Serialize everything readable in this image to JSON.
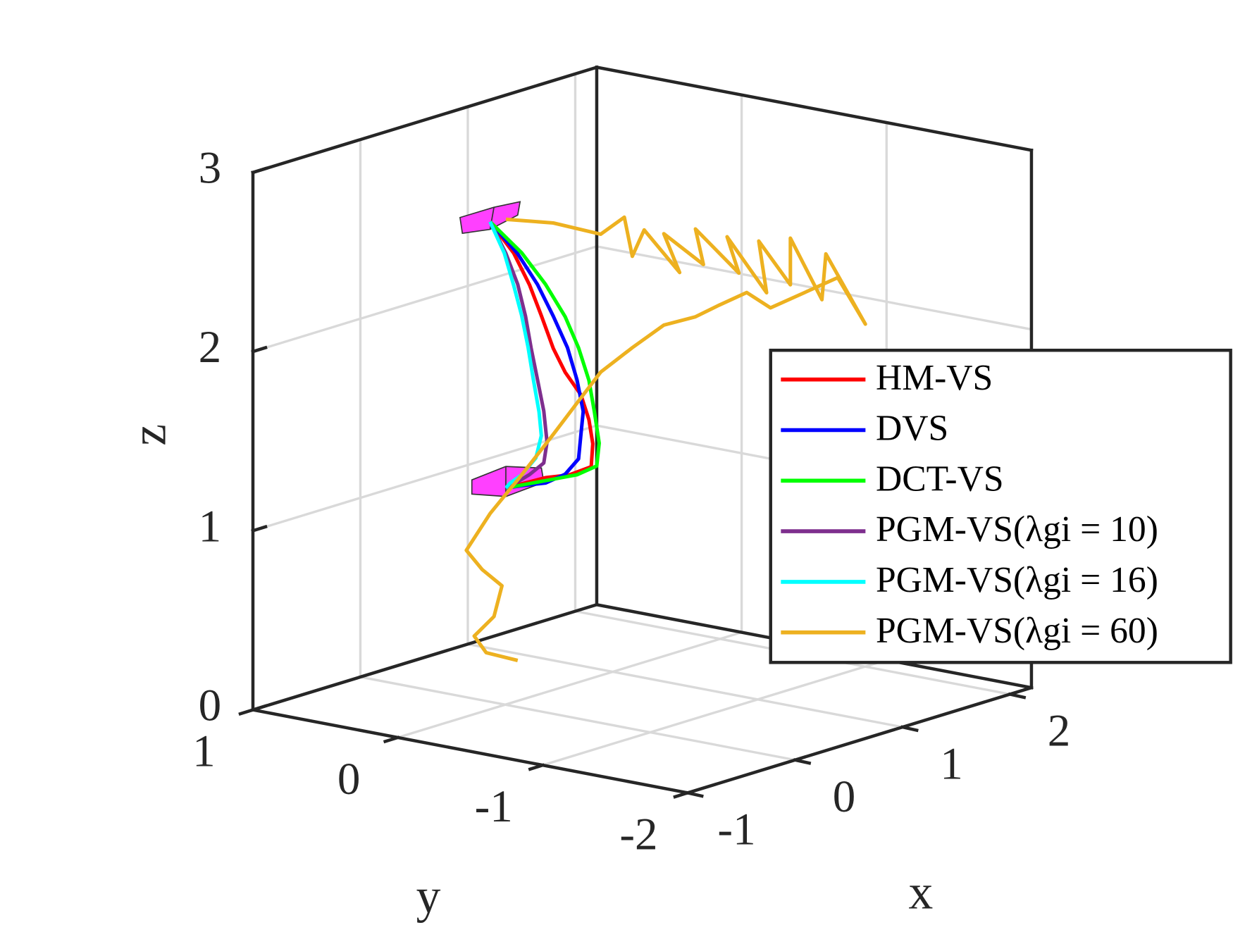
{
  "chart_data": {
    "type": "line3d",
    "xlabel": "x",
    "ylabel": "y",
    "zlabel": "z",
    "xlim": [
      -1,
      2.2
    ],
    "ylim": [
      -2,
      1
    ],
    "zlim": [
      0,
      3
    ],
    "xticks": [
      -1,
      0,
      1,
      2
    ],
    "yticks": [
      -2,
      -1,
      0,
      1
    ],
    "zticks": [
      0,
      1,
      2,
      3
    ],
    "grid": true,
    "legend": "east",
    "series": [
      {
        "name": "HM-VS",
        "color": "#ff0000",
        "x": [
          0,
          0,
          0,
          0,
          0,
          0,
          0,
          0,
          0,
          0,
          0,
          0,
          0,
          0
        ],
        "y": [
          0.105,
          -0.058,
          -0.167,
          -0.249,
          -0.331,
          -0.413,
          -0.522,
          -0.577,
          -0.604,
          -0.593,
          -0.44,
          -0.277,
          -0.113,
          -0.004
        ],
        "z": [
          2.68,
          2.53,
          2.37,
          2.21,
          2.04,
          1.92,
          1.81,
          1.68,
          1.55,
          1.42,
          1.35,
          1.31,
          1.25,
          1.21
        ]
      },
      {
        "name": "DVS",
        "color": "#0000ff",
        "x": [
          0,
          0,
          0,
          0,
          0,
          0,
          0,
          0,
          0,
          0,
          0,
          0,
          0
        ],
        "y": [
          0.105,
          -0.086,
          -0.222,
          -0.331,
          -0.429,
          -0.495,
          -0.538,
          -0.522,
          -0.506,
          -0.413,
          -0.277,
          -0.113,
          -0.004
        ],
        "z": [
          2.68,
          2.53,
          2.38,
          2.22,
          2.06,
          1.89,
          1.72,
          1.59,
          1.45,
          1.35,
          1.28,
          1.24,
          1.21
        ]
      },
      {
        "name": "DCT-VS",
        "color": "#00ff00",
        "x": [
          0,
          0,
          0,
          0,
          0,
          0,
          0,
          0,
          0,
          0,
          0,
          0,
          0
        ],
        "y": [
          0.105,
          -0.113,
          -0.277,
          -0.413,
          -0.506,
          -0.577,
          -0.615,
          -0.648,
          -0.631,
          -0.495,
          -0.331,
          -0.167,
          -0.004
        ],
        "z": [
          2.68,
          2.54,
          2.39,
          2.23,
          2.07,
          1.9,
          1.73,
          1.56,
          1.43,
          1.36,
          1.31,
          1.26,
          1.21
        ]
      },
      {
        "name": "PGM-VS(λgi = 10)",
        "color": "#7e2f8e",
        "x": [
          0,
          0,
          0,
          0,
          0,
          0,
          0,
          0,
          0,
          0,
          0,
          0
        ],
        "y": [
          0.105,
          -0.004,
          -0.086,
          -0.14,
          -0.178,
          -0.222,
          -0.266,
          -0.288,
          -0.266,
          -0.167,
          -0.058,
          -0.004
        ],
        "z": [
          2.68,
          2.52,
          2.36,
          2.19,
          2.02,
          1.85,
          1.68,
          1.51,
          1.39,
          1.31,
          1.24,
          1.21
        ]
      },
      {
        "name": "PGM-VS(λgi = 16)",
        "color": "#00ffff",
        "x": [
          0,
          0,
          0,
          0,
          0,
          0,
          0,
          0,
          0,
          0,
          0,
          0
        ],
        "y": [
          0.105,
          0.007,
          -0.058,
          -0.113,
          -0.157,
          -0.195,
          -0.233,
          -0.249,
          -0.211,
          -0.113,
          -0.031,
          -0.004
        ],
        "z": [
          2.68,
          2.52,
          2.35,
          2.19,
          2.02,
          1.84,
          1.67,
          1.54,
          1.41,
          1.3,
          1.24,
          1.21
        ]
      },
      {
        "name": "PGM-VS(λgi = 60)",
        "color": "#edb120",
        "x": [
          0,
          0,
          1,
          1,
          1,
          1,
          1,
          1,
          1,
          1,
          1,
          1,
          1,
          1,
          1,
          1,
          1,
          1,
          1,
          1,
          1,
          1,
          1,
          1,
          1,
          1,
          1,
          0,
          0,
          0,
          0,
          0,
          0,
          0,
          0,
          0,
          0,
          0
        ],
        "y": [
          -0.004,
          -0.331,
          0.083,
          -0.08,
          -0.135,
          -0.217,
          -0.462,
          -0.353,
          -0.626,
          -0.571,
          -0.871,
          -0.789,
          -1.062,
          -1.008,
          -1.226,
          -1.226,
          -1.444,
          -1.471,
          -1.744,
          -1.553,
          -1.089,
          -0.925,
          -0.734,
          -0.571,
          -0.353,
          -0.135,
          0.083,
          -0.495,
          -0.331,
          -0.113,
          0.105,
          0.269,
          0.16,
          0.023,
          0.078,
          0.214,
          0.132,
          -0.086
        ],
        "z": [
          2.71,
          2.74,
          2.43,
          2.55,
          2.34,
          2.5,
          2.3,
          2.5,
          2.37,
          2.56,
          2.36,
          2.55,
          2.28,
          2.56,
          2.35,
          2.61,
          2.3,
          2.56,
          2.21,
          2.44,
          2.2,
          2.26,
          2.16,
          2.07,
          1.99,
          1.83,
          1.66,
          1.76,
          1.56,
          1.3,
          1.05,
          0.82,
          0.73,
          0.66,
          0.48,
          0.35,
          0.27,
          0.26
        ]
      }
    ]
  }
}
